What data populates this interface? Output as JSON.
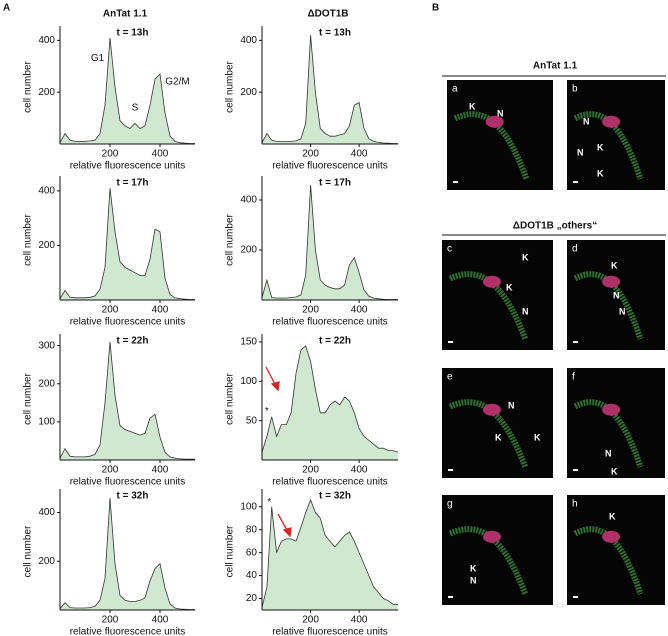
{
  "figure": {
    "panel_a": "A",
    "panel_b": "B",
    "col_headers": [
      "AnTat 1.1",
      "ΔDOT1B"
    ],
    "section_b": [
      "AnTat 1.1",
      "ΔDOT1B „others“"
    ]
  },
  "images": [
    {
      "letter": "a",
      "labels": [
        "K",
        "N"
      ]
    },
    {
      "letter": "b",
      "labels": [
        "N",
        "N",
        "K",
        "K"
      ]
    },
    {
      "letter": "c",
      "labels": [
        "K",
        "K",
        "N"
      ]
    },
    {
      "letter": "d",
      "labels": [
        "K",
        "N",
        "N"
      ]
    },
    {
      "letter": "e",
      "labels": [
        "N",
        "K",
        "K"
      ]
    },
    {
      "letter": "f",
      "labels": [
        "N",
        "K"
      ]
    },
    {
      "letter": "g",
      "labels": [
        "K",
        "N"
      ]
    },
    {
      "letter": "h",
      "labels": [
        "K"
      ]
    }
  ],
  "chart_data": [
    {
      "type": "area",
      "title": "t = 13h",
      "xlabel": "relative fluorescence units",
      "ylabel": "cell number",
      "color": "#cfe8cf",
      "xlim": [
        0,
        540
      ],
      "ylim": [
        0,
        440
      ],
      "xticks": [
        200,
        400
      ],
      "yticks": [
        200,
        400
      ],
      "x": [
        0,
        20,
        40,
        60,
        80,
        100,
        120,
        140,
        160,
        180,
        200,
        220,
        240,
        260,
        280,
        300,
        320,
        340,
        360,
        380,
        400,
        420,
        440,
        460,
        480,
        500,
        520,
        540
      ],
      "values": [
        5,
        40,
        15,
        10,
        10,
        10,
        12,
        15,
        40,
        150,
        410,
        220,
        90,
        70,
        60,
        80,
        60,
        70,
        150,
        250,
        270,
        120,
        30,
        10,
        5,
        3,
        2,
        2
      ],
      "annotations": [
        {
          "text": "G1",
          "x": 150,
          "y": 330
        },
        {
          "text": "S",
          "x": 300,
          "y": 140
        },
        {
          "text": "G2/M",
          "x": 470,
          "y": 240
        }
      ]
    },
    {
      "type": "area",
      "title": "t = 13h",
      "xlabel": "relative fluorescence units",
      "ylabel": "cell number",
      "color": "#cfe8cf",
      "xlim": [
        0,
        560
      ],
      "ylim": [
        0,
        440
      ],
      "xticks": [
        200,
        400
      ],
      "yticks": [
        200,
        400
      ],
      "x": [
        0,
        20,
        40,
        60,
        80,
        100,
        120,
        140,
        160,
        180,
        200,
        220,
        240,
        260,
        280,
        300,
        320,
        340,
        360,
        380,
        400,
        420,
        440,
        460,
        480,
        500,
        520,
        540,
        560
      ],
      "values": [
        5,
        40,
        15,
        10,
        10,
        10,
        10,
        12,
        20,
        80,
        420,
        200,
        60,
        40,
        30,
        30,
        35,
        40,
        70,
        150,
        160,
        60,
        20,
        10,
        6,
        4,
        3,
        2,
        2
      ]
    },
    {
      "type": "area",
      "title": "t = 17h",
      "xlabel": "relative fluorescence units",
      "ylabel": "cell number",
      "color": "#cfe8cf",
      "xlim": [
        0,
        540
      ],
      "ylim": [
        0,
        440
      ],
      "xticks": [
        200,
        400
      ],
      "yticks": [
        200,
        400
      ],
      "x": [
        0,
        20,
        40,
        60,
        80,
        100,
        120,
        140,
        160,
        180,
        200,
        220,
        240,
        260,
        280,
        300,
        320,
        340,
        360,
        380,
        400,
        420,
        440,
        460,
        480,
        500,
        520,
        540
      ],
      "values": [
        5,
        35,
        10,
        8,
        8,
        8,
        10,
        15,
        40,
        120,
        410,
        250,
        140,
        120,
        110,
        100,
        90,
        90,
        150,
        260,
        250,
        80,
        20,
        8,
        5,
        3,
        2,
        2
      ]
    },
    {
      "type": "area",
      "title": "t = 17h",
      "xlabel": "relative fluorescence units",
      "ylabel": "cell number",
      "color": "#cfe8cf",
      "xlim": [
        0,
        560
      ],
      "ylim": [
        0,
        480
      ],
      "xticks": [
        200,
        400
      ],
      "yticks": [
        200,
        400
      ],
      "x": [
        0,
        20,
        40,
        60,
        80,
        100,
        120,
        140,
        160,
        180,
        200,
        220,
        240,
        260,
        280,
        300,
        320,
        340,
        360,
        380,
        400,
        420,
        440,
        460,
        480,
        500,
        520,
        540,
        560
      ],
      "values": [
        10,
        80,
        10,
        8,
        8,
        8,
        10,
        12,
        20,
        100,
        460,
        200,
        80,
        60,
        50,
        45,
        45,
        60,
        140,
        170,
        110,
        40,
        15,
        8,
        5,
        3,
        2,
        2,
        2
      ]
    },
    {
      "type": "area",
      "title": "t = 22h",
      "xlabel": "relative fluorescence units",
      "ylabel": "cell number",
      "color": "#cfe8cf",
      "xlim": [
        0,
        540
      ],
      "ylim": [
        0,
        320
      ],
      "xticks": [
        200,
        400
      ],
      "yticks": [
        100,
        200,
        300
      ],
      "x": [
        0,
        20,
        40,
        60,
        80,
        100,
        120,
        140,
        160,
        180,
        200,
        220,
        240,
        260,
        280,
        300,
        320,
        340,
        360,
        380,
        400,
        420,
        440,
        460,
        480,
        500,
        520,
        540
      ],
      "values": [
        5,
        30,
        10,
        8,
        8,
        8,
        10,
        15,
        40,
        150,
        310,
        170,
        90,
        80,
        75,
        70,
        65,
        70,
        110,
        120,
        60,
        20,
        8,
        5,
        3,
        2,
        2,
        2
      ]
    },
    {
      "type": "area",
      "title": "t = 22h",
      "xlabel": "relative fluorescence units",
      "ylabel": "cell number",
      "color": "#cfe8cf",
      "xlim": [
        0,
        560
      ],
      "ylim": [
        0,
        155
      ],
      "xticks": [
        200,
        400
      ],
      "yticks": [
        50,
        100,
        150
      ],
      "x": [
        0,
        20,
        40,
        60,
        80,
        100,
        120,
        140,
        160,
        180,
        200,
        220,
        240,
        260,
        280,
        300,
        320,
        340,
        360,
        380,
        400,
        420,
        440,
        460,
        480,
        500,
        520,
        540,
        560
      ],
      "values": [
        10,
        30,
        55,
        30,
        45,
        45,
        60,
        110,
        140,
        145,
        125,
        90,
        60,
        60,
        70,
        75,
        70,
        80,
        75,
        60,
        40,
        30,
        25,
        20,
        15,
        15,
        12,
        12,
        10
      ],
      "annotations": [
        {
          "text": "*",
          "x": 20,
          "y": 62
        }
      ]
    },
    {
      "type": "area",
      "title": "t = 32h",
      "xlabel": "relative fluorescence units",
      "ylabel": "cell number",
      "color": "#cfe8cf",
      "xlim": [
        0,
        540
      ],
      "ylim": [
        0,
        480
      ],
      "xticks": [
        200,
        400
      ],
      "yticks": [
        200,
        400
      ],
      "x": [
        0,
        20,
        40,
        60,
        80,
        100,
        120,
        140,
        160,
        180,
        200,
        220,
        240,
        260,
        280,
        300,
        320,
        340,
        360,
        380,
        400,
        420,
        440,
        460,
        480,
        500,
        520,
        540
      ],
      "values": [
        5,
        30,
        10,
        8,
        8,
        8,
        10,
        15,
        40,
        130,
        460,
        190,
        60,
        40,
        35,
        35,
        40,
        50,
        120,
        170,
        190,
        90,
        25,
        8,
        4,
        3,
        2,
        2
      ]
    },
    {
      "type": "area",
      "title": "t = 32h",
      "xlabel": "relative fluorescence units",
      "ylabel": "cell number",
      "color": "#cfe8cf",
      "xlim": [
        0,
        560
      ],
      "ylim": [
        10,
        112
      ],
      "xticks": [
        200,
        400
      ],
      "yticks": [
        20,
        40,
        60,
        80,
        100
      ],
      "x": [
        0,
        20,
        40,
        60,
        80,
        100,
        120,
        140,
        160,
        180,
        200,
        220,
        240,
        260,
        280,
        300,
        320,
        340,
        360,
        380,
        400,
        420,
        440,
        460,
        480,
        500,
        520,
        540,
        560
      ],
      "values": [
        12,
        30,
        100,
        60,
        70,
        72,
        72,
        70,
        82,
        95,
        106,
        95,
        90,
        75,
        70,
        65,
        70,
        75,
        78,
        70,
        60,
        50,
        40,
        30,
        25,
        20,
        18,
        15,
        15
      ],
      "annotations": [
        {
          "text": "*",
          "x": 30,
          "y": 104
        }
      ]
    }
  ]
}
